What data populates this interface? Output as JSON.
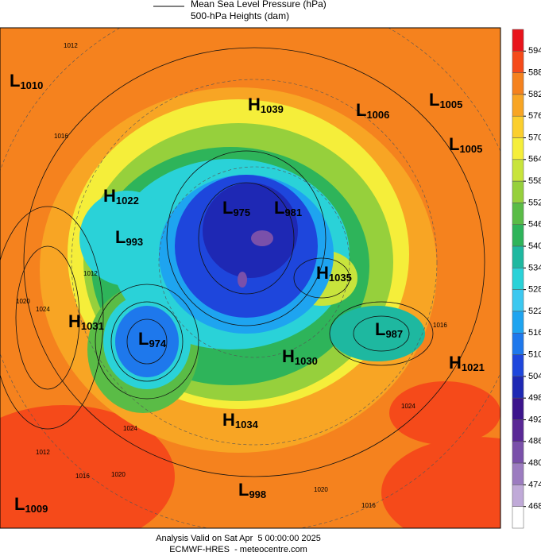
{
  "legend": {
    "line_label": "Mean Sea Level Pressure (hPa)",
    "fill_label": "500-hPa Heights (dam)"
  },
  "centers": [
    {
      "letter": "L",
      "value": 1010
    },
    {
      "letter": "H",
      "value": 1039
    },
    {
      "letter": "L",
      "value": 1006
    },
    {
      "letter": "L",
      "value": 1005
    },
    {
      "letter": "L",
      "value": 1005
    },
    {
      "letter": "H",
      "value": 1022
    },
    {
      "letter": "L",
      "value": 975
    },
    {
      "letter": "L",
      "value": 981
    },
    {
      "letter": "L",
      "value": 993
    },
    {
      "letter": "H",
      "value": 1035
    },
    {
      "letter": "H",
      "value": 1031
    },
    {
      "letter": "L",
      "value": 974
    },
    {
      "letter": "L",
      "value": 987
    },
    {
      "letter": "H",
      "value": 1030
    },
    {
      "letter": "H",
      "value": 1021
    },
    {
      "letter": "H",
      "value": 1034
    },
    {
      "letter": "L",
      "value": 998
    },
    {
      "letter": "L",
      "value": 1009
    }
  ],
  "contour_labels": [
    1012,
    1016,
    1012,
    1020,
    1024,
    1012,
    1016,
    1020,
    1024,
    1020,
    1016,
    1024,
    1016
  ],
  "colorbar": {
    "ticks": [
      594,
      588,
      582,
      576,
      570,
      564,
      558,
      552,
      546,
      540,
      534,
      528,
      522,
      516,
      510,
      504,
      498,
      492,
      486,
      480,
      474,
      468
    ],
    "colors": [
      "#e8141c",
      "#f54a1a",
      "#f5821e",
      "#f8a524",
      "#fbcf2d",
      "#f5ee3a",
      "#c8e43c",
      "#96d03c",
      "#5abc46",
      "#2eb45a",
      "#1eb8a0",
      "#2ad2d8",
      "#3cc8f0",
      "#1ea4f0",
      "#1e78ec",
      "#1e46dc",
      "#1e28b4",
      "#3c148c",
      "#5a2896",
      "#7a50aa",
      "#9c7cc0",
      "#c0aad8",
      "#ffffff"
    ]
  },
  "footer": {
    "line1": "Analysis Valid on Sat Apr  5 00:00:00 2025",
    "line2": "ECMWF-HRES  - meteocentre.com"
  }
}
